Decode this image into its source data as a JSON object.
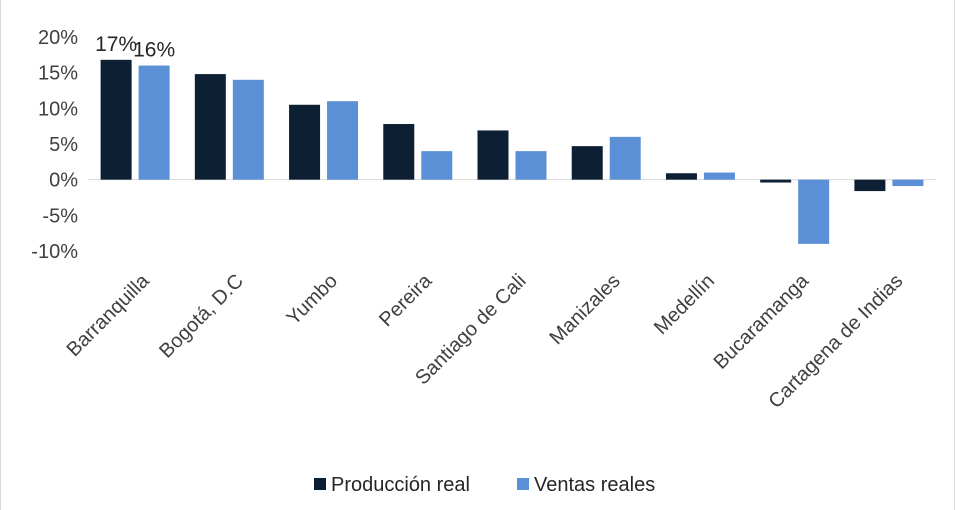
{
  "chart_data": {
    "type": "bar",
    "categories": [
      "Barranquilla",
      "Bogotá, D.C",
      "Yumbo",
      "Pereira",
      "Santiago de Cali",
      "Manizales",
      "Medellín",
      "Bucaramanga",
      "Cartagena de Indias"
    ],
    "series": [
      {
        "name": "Producción real",
        "color": "#0d1f33",
        "values": [
          16.8,
          14.8,
          10.5,
          7.8,
          6.9,
          4.7,
          0.9,
          -0.4,
          -1.6
        ]
      },
      {
        "name": "Ventas reales",
        "color": "#5b8fd6",
        "values": [
          16.0,
          14.0,
          11.0,
          4.0,
          4.0,
          6.0,
          1.0,
          -9.0,
          -0.9
        ]
      }
    ],
    "data_labels": [
      {
        "series": 0,
        "category": 0,
        "text": "17%"
      },
      {
        "series": 1,
        "category": 0,
        "text": "16%"
      }
    ],
    "y_ticks": [
      -10,
      -5,
      0,
      5,
      10,
      15,
      20
    ],
    "y_tick_labels": [
      "-10%",
      "-5%",
      "0%",
      "5%",
      "10%",
      "15%",
      "20%"
    ],
    "ylim": [
      -10,
      20
    ],
    "legend_position": "bottom",
    "grid": false,
    "zero_line_color": "#d9d9d9"
  }
}
